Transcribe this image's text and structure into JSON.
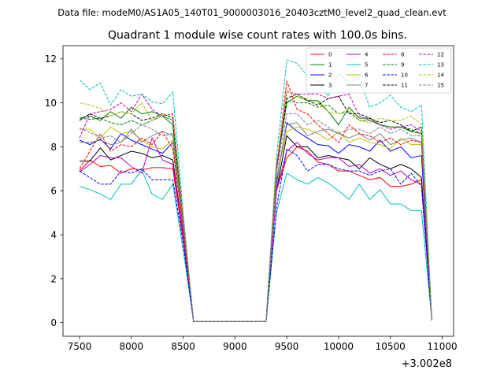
{
  "chart_data": {
    "type": "line",
    "suptitle": "Data file: modeM0/AS1A05_140T01_9000003016_20403cztM0_level2_quad_clean.evt",
    "title": "Quadrant 1 module wise count rates with 100.0s bins.",
    "xlabel": "",
    "ylabel": "",
    "x_offset_label": "+3.002e8",
    "xlim": [
      7340,
      11110
    ],
    "ylim": [
      -0.62,
      12.6
    ],
    "x_ticks": [
      7500,
      8000,
      8500,
      9000,
      9500,
      10000,
      10500,
      11000
    ],
    "x_tick_labels": [
      "7500",
      "8000",
      "8500",
      "9000",
      "9500",
      "10000",
      "10500",
      "11000"
    ],
    "y_ticks": [
      0,
      2,
      4,
      6,
      8,
      10,
      12
    ],
    "y_tick_labels": [
      "0",
      "2",
      "4",
      "6",
      "8",
      "10",
      "12"
    ],
    "x": [
      7500,
      7600,
      7700,
      7800,
      7900,
      8000,
      8100,
      8200,
      8300,
      8400,
      8500,
      8600,
      8700,
      8800,
      8900,
      9000,
      9100,
      9200,
      9300,
      9400,
      9500,
      9600,
      9700,
      9800,
      9900,
      10000,
      10100,
      10200,
      10300,
      10400,
      10500,
      10600,
      10700,
      10800,
      10900
    ],
    "legend_location": "upper right",
    "series": [
      {
        "name": "0",
        "color": "#ff0000",
        "dash": "solid",
        "values": [
          6.9,
          7.4,
          7.1,
          7.15,
          6.8,
          7.0,
          6.95,
          7.05,
          7.05,
          7.0,
          3.8,
          0.05,
          0.05,
          0.05,
          0.05,
          0.05,
          0.05,
          0.05,
          0.05,
          6.0,
          7.5,
          8.0,
          7.8,
          7.3,
          7.2,
          6.9,
          6.9,
          6.7,
          6.5,
          6.6,
          6.2,
          6.2,
          6.3,
          6.5,
          0.1
        ]
      },
      {
        "name": "1",
        "color": "#008000",
        "dash": "solid",
        "values": [
          9.3,
          9.4,
          9.2,
          9.6,
          9.3,
          9.8,
          9.5,
          9.6,
          9.4,
          9.0,
          4.5,
          0.05,
          0.05,
          0.05,
          0.05,
          0.05,
          0.05,
          0.05,
          0.05,
          7.0,
          10.0,
          10.3,
          10.1,
          10.1,
          9.6,
          9.0,
          9.8,
          9.3,
          9.3,
          9.0,
          8.9,
          8.9,
          8.7,
          8.6,
          0.1
        ]
      },
      {
        "name": "2",
        "color": "#0000ff",
        "dash": "solid",
        "values": [
          8.3,
          8.1,
          8.35,
          7.9,
          8.6,
          8.3,
          8.1,
          7.9,
          7.7,
          8.2,
          4.3,
          0.05,
          0.05,
          0.05,
          0.05,
          0.05,
          0.05,
          0.05,
          0.05,
          6.3,
          9.1,
          8.7,
          8.4,
          8.1,
          8.05,
          7.7,
          8.1,
          8.0,
          7.8,
          8.3,
          7.8,
          8.0,
          7.5,
          7.6,
          0.1
        ]
      },
      {
        "name": "3",
        "color": "#000000",
        "dash": "solid",
        "values": [
          7.35,
          7.35,
          7.95,
          7.4,
          7.6,
          7.8,
          7.7,
          7.5,
          7.6,
          7.4,
          4.0,
          0.05,
          0.05,
          0.05,
          0.05,
          0.05,
          0.05,
          0.05,
          0.05,
          6.0,
          8.5,
          8.0,
          8.0,
          7.5,
          7.6,
          7.5,
          7.4,
          7.0,
          7.5,
          7.2,
          7.0,
          7.2,
          7.0,
          6.6,
          0.1
        ]
      },
      {
        "name": "4",
        "color": "#bf00bf",
        "dash": "solid",
        "values": [
          6.85,
          7.2,
          7.6,
          7.5,
          7.5,
          7.1,
          6.8,
          8.4,
          7.4,
          7.2,
          4.0,
          0.05,
          0.05,
          0.05,
          0.05,
          0.05,
          0.05,
          0.05,
          0.05,
          6.0,
          7.8,
          8.2,
          7.7,
          7.4,
          7.5,
          7.5,
          7.1,
          7.2,
          6.8,
          7.0,
          6.7,
          6.9,
          6.5,
          6.3,
          0.1
        ]
      },
      {
        "name": "5",
        "color": "#00bfbf",
        "dash": "solid",
        "values": [
          6.2,
          6.05,
          5.85,
          5.6,
          6.3,
          6.3,
          6.95,
          5.85,
          5.6,
          6.3,
          3.3,
          0.05,
          0.05,
          0.05,
          0.05,
          0.05,
          0.05,
          0.05,
          0.05,
          5.0,
          6.8,
          6.5,
          6.3,
          6.6,
          6.35,
          6.0,
          5.6,
          6.3,
          5.6,
          6.05,
          5.4,
          5.4,
          5.1,
          5.1,
          0.1
        ]
      },
      {
        "name": "6",
        "color": "#bfbf00",
        "dash": "solid",
        "values": [
          8.8,
          8.8,
          8.4,
          8.9,
          8.6,
          8.7,
          8.3,
          8.0,
          7.9,
          8.3,
          4.4,
          0.05,
          0.05,
          0.05,
          0.05,
          0.05,
          0.05,
          0.05,
          0.05,
          6.5,
          8.7,
          8.9,
          8.8,
          8.6,
          8.3,
          8.7,
          8.2,
          8.4,
          8.2,
          8.1,
          7.9,
          8.4,
          8.1,
          8.1,
          0.1
        ]
      },
      {
        "name": "7",
        "color": "#808080",
        "dash": "solid",
        "values": [
          8.2,
          8.2,
          8.3,
          8.1,
          8.2,
          8.8,
          8.2,
          8.5,
          8.7,
          8.5,
          4.5,
          0.05,
          0.05,
          0.05,
          0.05,
          0.05,
          0.05,
          0.05,
          0.05,
          6.5,
          9.0,
          9.1,
          8.5,
          8.7,
          8.8,
          8.6,
          8.4,
          8.6,
          8.3,
          8.6,
          8.1,
          8.3,
          8.4,
          8.2,
          0.1
        ]
      },
      {
        "name": "8",
        "color": "#ff0000",
        "dash": "dashed",
        "values": [
          7.0,
          7.8,
          8.6,
          7.8,
          8.1,
          8.0,
          8.4,
          8.1,
          8.7,
          7.9,
          4.3,
          0.05,
          0.05,
          0.05,
          0.05,
          0.05,
          0.05,
          0.05,
          0.05,
          7.0,
          11.0,
          9.7,
          9.5,
          9.0,
          8.6,
          8.2,
          9.0,
          8.6,
          8.5,
          8.2,
          8.4,
          8.1,
          8.3,
          8.2,
          0.1
        ]
      },
      {
        "name": "9",
        "color": "#008000",
        "dash": "dashed",
        "values": [
          9.3,
          9.25,
          9.3,
          9.1,
          9.0,
          9.2,
          9.0,
          9.2,
          9.4,
          9.2,
          4.7,
          0.05,
          0.05,
          0.05,
          0.05,
          0.05,
          0.05,
          0.05,
          0.05,
          7.2,
          10.1,
          10.0,
          10.0,
          9.8,
          9.9,
          9.5,
          9.6,
          9.2,
          9.2,
          9.0,
          8.9,
          8.9,
          8.8,
          8.6,
          0.1
        ]
      },
      {
        "name": "10",
        "color": "#0000ff",
        "dash": "dashed",
        "values": [
          6.9,
          6.6,
          6.3,
          6.3,
          6.9,
          6.8,
          7.0,
          6.5,
          6.5,
          6.5,
          3.6,
          0.05,
          0.05,
          0.05,
          0.05,
          0.05,
          0.05,
          0.05,
          0.05,
          5.2,
          7.9,
          7.6,
          6.9,
          7.2,
          7.2,
          7.0,
          6.9,
          6.9,
          6.7,
          6.9,
          7.0,
          6.3,
          6.8,
          6.2,
          0.1
        ]
      },
      {
        "name": "11",
        "color": "#000000",
        "dash": "dashed",
        "values": [
          9.2,
          9.5,
          9.3,
          9.4,
          9.6,
          9.5,
          9.2,
          9.3,
          9.5,
          9.3,
          4.7,
          0.05,
          0.05,
          0.05,
          0.05,
          0.05,
          0.05,
          0.05,
          0.05,
          7.0,
          10.2,
          10.4,
          10.1,
          9.9,
          10.2,
          10.3,
          9.5,
          9.5,
          9.3,
          9.1,
          9.2,
          9.0,
          8.7,
          8.9,
          0.1
        ]
      },
      {
        "name": "12",
        "color": "#bf00bf",
        "dash": "dashed",
        "values": [
          8.4,
          9.5,
          9.6,
          9.7,
          10.0,
          9.6,
          10.4,
          9.7,
          9.4,
          9.5,
          4.8,
          0.05,
          0.05,
          0.05,
          0.05,
          0.05,
          0.05,
          0.05,
          0.05,
          7.0,
          10.5,
          10.4,
          10.4,
          10.4,
          10.2,
          10.3,
          10.4,
          9.4,
          9.2,
          9.0,
          8.8,
          8.9,
          9.0,
          8.7,
          0.1
        ]
      },
      {
        "name": "13",
        "color": "#00bfbf",
        "dash": "dashed",
        "values": [
          11.05,
          10.6,
          10.9,
          9.9,
          10.6,
          10.3,
          10.4,
          10.05,
          9.95,
          10.5,
          5.0,
          0.05,
          0.05,
          0.05,
          0.05,
          0.05,
          0.05,
          0.05,
          0.05,
          7.5,
          11.95,
          11.8,
          11.2,
          11.0,
          10.3,
          11.35,
          10.9,
          11.15,
          9.8,
          10.0,
          10.35,
          9.8,
          9.6,
          9.9,
          0.1
        ]
      },
      {
        "name": "14",
        "color": "#bfbf00",
        "dash": "dashed",
        "values": [
          10.0,
          9.9,
          9.75,
          9.4,
          9.6,
          9.5,
          10.0,
          9.2,
          9.5,
          9.4,
          4.8,
          0.05,
          0.05,
          0.05,
          0.05,
          0.05,
          0.05,
          0.05,
          0.05,
          7.2,
          10.6,
          10.3,
          10.2,
          10.0,
          9.6,
          9.5,
          9.7,
          9.2,
          9.1,
          9.3,
          9.2,
          9.2,
          9.4,
          9.0,
          0.1
        ]
      },
      {
        "name": "15",
        "color": "#808080",
        "dash": "dashed",
        "values": [
          8.85,
          8.65,
          8.4,
          8.5,
          8.2,
          8.6,
          9.0,
          8.8,
          8.5,
          8.6,
          4.5,
          0.05,
          0.05,
          0.05,
          0.05,
          0.05,
          0.05,
          0.05,
          0.05,
          6.8,
          9.5,
          9.5,
          9.0,
          9.2,
          8.9,
          8.6,
          8.8,
          8.8,
          8.6,
          8.9,
          8.6,
          8.8,
          8.5,
          8.5,
          0.1
        ]
      }
    ]
  }
}
